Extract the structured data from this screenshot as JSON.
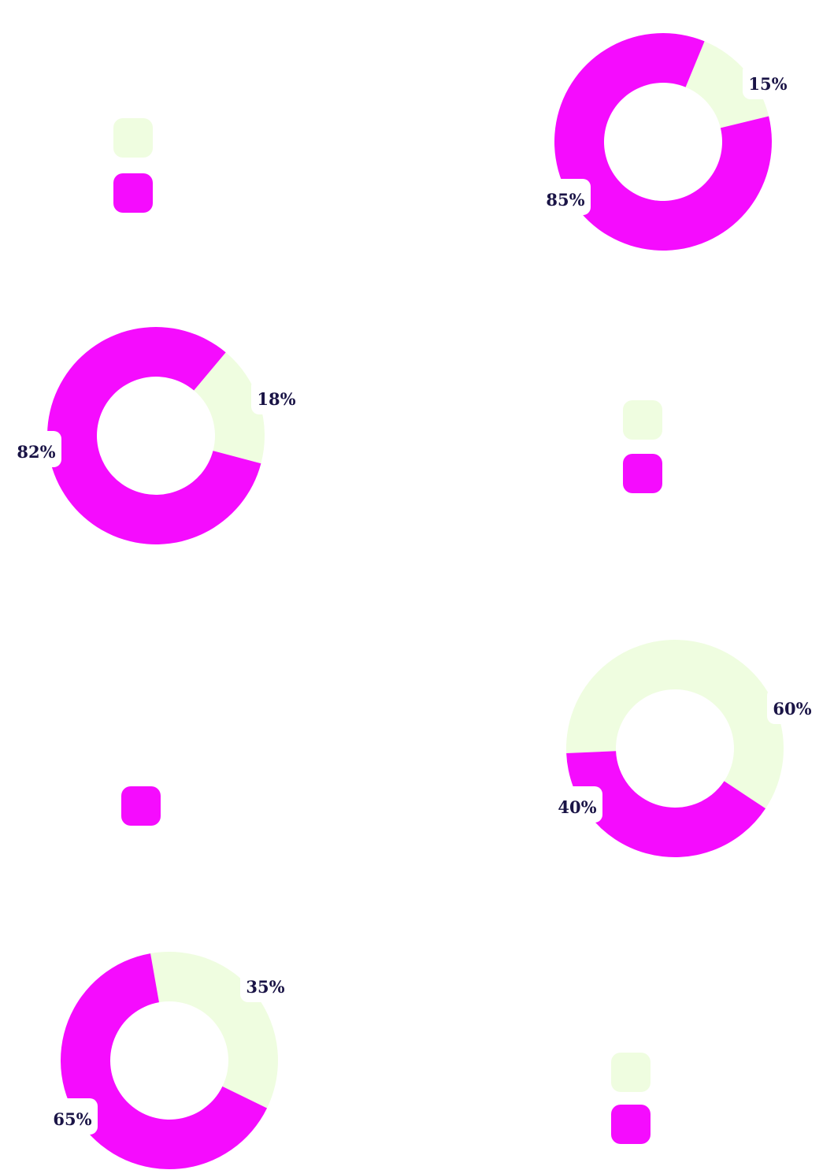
{
  "colors": {
    "light": "#effde0",
    "magenta": "#f50cfe",
    "label_text": "#1a1446"
  },
  "chart_data": [
    {
      "type": "pie",
      "donut": true,
      "slices": [
        {
          "value": 15,
          "label": "15%",
          "color": "#effde0"
        },
        {
          "value": 85,
          "label": "85%",
          "color": "#f50cfe"
        }
      ],
      "legend": {
        "swatches": [
          "#effde0",
          "#f50cfe"
        ],
        "placement": "left"
      }
    },
    {
      "type": "pie",
      "donut": true,
      "slices": [
        {
          "value": 18,
          "label": "18%",
          "color": "#effde0"
        },
        {
          "value": 82,
          "label": "82%",
          "color": "#f50cfe"
        }
      ],
      "legend": {
        "swatches": [
          "#effde0",
          "#f50cfe"
        ],
        "placement": "right"
      }
    },
    {
      "type": "pie",
      "donut": true,
      "slices": [
        {
          "value": 60,
          "label": "60%",
          "color": "#effde0"
        },
        {
          "value": 40,
          "label": "40%",
          "color": "#f50cfe"
        }
      ],
      "legend": {
        "swatches": [
          "#f50cfe"
        ],
        "placement": "left"
      }
    },
    {
      "type": "pie",
      "donut": true,
      "slices": [
        {
          "value": 35,
          "label": "35%",
          "color": "#effde0"
        },
        {
          "value": 65,
          "label": "65%",
          "color": "#f50cfe"
        }
      ],
      "legend": {
        "swatches": [
          "#effde0",
          "#f50cfe"
        ],
        "placement": "right"
      }
    }
  ]
}
